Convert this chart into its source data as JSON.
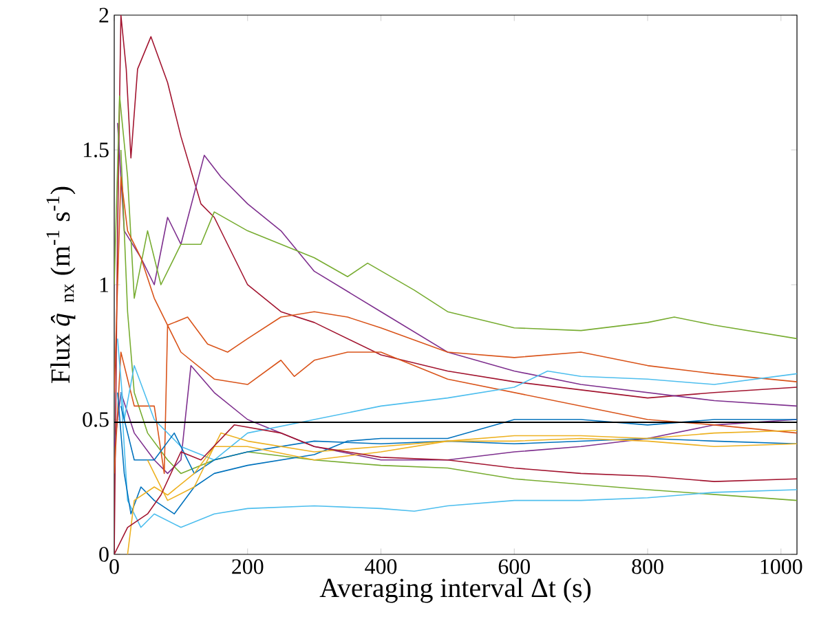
{
  "chart_data": {
    "type": "line",
    "xlabel": "Averaging interval Δt (s)",
    "ylabel": "Flux *q̂*$_{nx}$ (m$^{-1}$ s$^{-1}$)",
    "xlim": [
      0,
      1024
    ],
    "ylim": [
      0,
      2
    ],
    "xticks": [
      0,
      200,
      400,
      600,
      800,
      1000
    ],
    "yticks": [
      0,
      0.5,
      1,
      1.5,
      2
    ],
    "ref_lines": [
      {
        "axis": "y",
        "value": 0.49,
        "color": "#000000"
      }
    ],
    "series": [
      {
        "color": "#a2142f",
        "x": [
          0,
          5,
          10,
          18,
          25,
          35,
          55,
          80,
          100,
          130,
          150,
          200,
          250,
          300,
          400,
          500,
          600,
          700,
          800,
          900,
          1024
        ],
        "values": [
          0,
          1.2,
          2.0,
          1.8,
          1.47,
          1.8,
          1.92,
          1.75,
          1.55,
          1.3,
          1.25,
          1.0,
          0.9,
          0.86,
          0.74,
          0.68,
          0.64,
          0.61,
          0.58,
          0.6,
          0.62
        ]
      },
      {
        "color": "#7e2f8e",
        "x": [
          5,
          15,
          40,
          60,
          80,
          100,
          135,
          160,
          200,
          250,
          300,
          400,
          500,
          600,
          700,
          800,
          900,
          1024
        ],
        "values": [
          1.6,
          1.2,
          1.1,
          1.0,
          1.25,
          1.15,
          1.48,
          1.4,
          1.3,
          1.2,
          1.05,
          0.9,
          0.75,
          0.68,
          0.63,
          0.6,
          0.57,
          0.55
        ]
      },
      {
        "color": "#7e2f8e",
        "x": [
          0,
          10,
          30,
          60,
          80,
          100,
          115,
          150,
          200,
          300,
          400,
          500,
          600,
          700,
          800,
          900,
          1024
        ],
        "values": [
          0.4,
          0.6,
          0.45,
          0.35,
          0.3,
          0.35,
          0.7,
          0.6,
          0.5,
          0.4,
          0.35,
          0.35,
          0.38,
          0.4,
          0.43,
          0.48,
          0.5
        ]
      },
      {
        "color": "#77ac30",
        "x": [
          0,
          8,
          20,
          30,
          50,
          70,
          100,
          130,
          150,
          200,
          250,
          300,
          350,
          380,
          450,
          500,
          600,
          700,
          800,
          840,
          900,
          1024
        ],
        "values": [
          1.0,
          1.7,
          1.4,
          0.95,
          1.2,
          1.0,
          1.15,
          1.15,
          1.27,
          1.2,
          1.15,
          1.1,
          1.03,
          1.08,
          0.98,
          0.9,
          0.84,
          0.83,
          0.86,
          0.88,
          0.85,
          0.8
        ]
      },
      {
        "color": "#77ac30",
        "x": [
          10,
          20,
          30,
          50,
          80,
          100,
          150,
          200,
          300,
          400,
          500,
          600,
          800,
          1024
        ],
        "values": [
          1.5,
          0.9,
          0.6,
          0.45,
          0.35,
          0.3,
          0.35,
          0.38,
          0.35,
          0.33,
          0.32,
          0.28,
          0.24,
          0.2
        ]
      },
      {
        "color": "#d95319",
        "x": [
          0,
          10,
          20,
          40,
          60,
          80,
          110,
          140,
          170,
          200,
          250,
          300,
          350,
          400,
          500,
          600,
          700,
          800,
          900,
          1024
        ],
        "values": [
          0.6,
          1.4,
          1.2,
          1.1,
          0.95,
          0.85,
          0.88,
          0.78,
          0.75,
          0.8,
          0.88,
          0.9,
          0.88,
          0.84,
          0.75,
          0.73,
          0.75,
          0.7,
          0.67,
          0.64
        ]
      },
      {
        "color": "#d95319",
        "x": [
          0,
          10,
          30,
          60,
          75,
          80,
          100,
          150,
          200,
          250,
          270,
          300,
          350,
          400,
          500,
          600,
          700,
          800,
          900,
          1024
        ],
        "values": [
          0.3,
          0.75,
          0.55,
          0.55,
          0.3,
          0.85,
          0.75,
          0.65,
          0.63,
          0.72,
          0.66,
          0.72,
          0.75,
          0.75,
          0.65,
          0.6,
          0.55,
          0.5,
          0.48,
          0.45
        ]
      },
      {
        "color": "#4dbeee",
        "x": [
          5,
          15,
          30,
          60,
          100,
          150,
          200,
          300,
          400,
          500,
          600,
          650,
          700,
          800,
          900,
          1024
        ],
        "values": [
          0.8,
          0.5,
          0.7,
          0.5,
          0.4,
          0.35,
          0.45,
          0.5,
          0.55,
          0.58,
          0.62,
          0.68,
          0.66,
          0.65,
          0.63,
          0.67
        ]
      },
      {
        "color": "#4dbeee",
        "x": [
          10,
          20,
          40,
          60,
          100,
          150,
          200,
          300,
          400,
          450,
          500,
          600,
          700,
          800,
          900,
          1024
        ],
        "values": [
          0.6,
          0.2,
          0.1,
          0.15,
          0.1,
          0.15,
          0.17,
          0.18,
          0.17,
          0.16,
          0.18,
          0.2,
          0.2,
          0.21,
          0.23,
          0.24
        ]
      },
      {
        "color": "#0072bd",
        "x": [
          5,
          15,
          25,
          40,
          60,
          90,
          120,
          150,
          200,
          300,
          350,
          400,
          500,
          600,
          700,
          800,
          900,
          1024
        ],
        "values": [
          0.6,
          0.3,
          0.15,
          0.25,
          0.2,
          0.15,
          0.25,
          0.3,
          0.33,
          0.37,
          0.42,
          0.43,
          0.43,
          0.5,
          0.5,
          0.48,
          0.5,
          0.5
        ]
      },
      {
        "color": "#0072bd",
        "x": [
          10,
          30,
          60,
          90,
          120,
          150,
          200,
          300,
          400,
          500,
          600,
          700,
          800,
          900,
          1024
        ],
        "values": [
          0.55,
          0.35,
          0.35,
          0.45,
          0.3,
          0.35,
          0.38,
          0.42,
          0.41,
          0.42,
          0.41,
          0.42,
          0.43,
          0.42,
          0.41
        ]
      },
      {
        "color": "#edb120",
        "x": [
          20,
          30,
          60,
          80,
          120,
          150,
          200,
          300,
          400,
          500,
          600,
          700,
          800,
          900,
          1024
        ],
        "values": [
          0.0,
          0.2,
          0.25,
          0.22,
          0.3,
          0.4,
          0.4,
          0.35,
          0.38,
          0.42,
          0.44,
          0.44,
          0.43,
          0.45,
          0.46
        ]
      },
      {
        "color": "#edb120",
        "x": [
          50,
          80,
          120,
          160,
          200,
          300,
          400,
          500,
          600,
          700,
          800,
          900,
          1024
        ],
        "values": [
          0.35,
          0.2,
          0.25,
          0.45,
          0.42,
          0.38,
          0.4,
          0.42,
          0.42,
          0.43,
          0.42,
          0.4,
          0.41
        ]
      },
      {
        "color": "#a2142f",
        "x": [
          0,
          20,
          50,
          70,
          100,
          130,
          180,
          250,
          300,
          400,
          500,
          600,
          700,
          800,
          900,
          1024
        ],
        "values": [
          0,
          0.1,
          0.15,
          0.22,
          0.38,
          0.35,
          0.48,
          0.45,
          0.4,
          0.36,
          0.35,
          0.32,
          0.3,
          0.29,
          0.27,
          0.28
        ]
      }
    ]
  }
}
